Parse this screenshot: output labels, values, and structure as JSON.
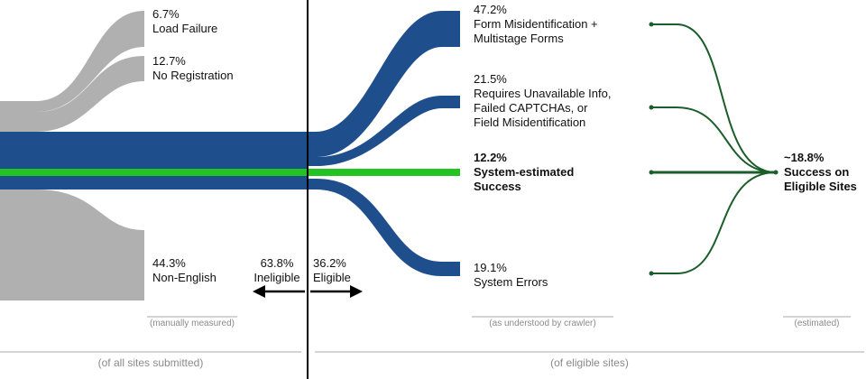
{
  "colors": {
    "ineligible": "#b0b0b0",
    "eligible_flow": "#1f4e8c",
    "success_flow": "#22c322",
    "estimate_flow": "#1b5e2a",
    "divider": "#000000",
    "rule": "#a8a8a8",
    "note_text": "#8a8a8a"
  },
  "ineligible_breakdown": [
    {
      "pct": "6.7%",
      "label": "Load Failure"
    },
    {
      "pct": "12.7%",
      "label": "No Registration"
    },
    {
      "pct": "44.3%",
      "label": "Non-English"
    }
  ],
  "split": {
    "ineligible_pct": "63.8%",
    "ineligible_label": "Ineligible",
    "eligible_pct": "36.2%",
    "eligible_label": "Eligible"
  },
  "eligible_breakdown": [
    {
      "pct": "47.2%",
      "lines": [
        "Form Misidentification +",
        "Multistage Forms"
      ]
    },
    {
      "pct": "21.5%",
      "lines": [
        "Requires Unavailable Info,",
        "Failed CAPTCHAs, or",
        "Field Misidentification"
      ]
    },
    {
      "pct": "12.2%",
      "lines": [
        "System-estimated",
        "Success"
      ]
    },
    {
      "pct": "19.1%",
      "lines": [
        "System Errors"
      ]
    }
  ],
  "estimate": {
    "pct": "~18.8%",
    "lines": [
      "Success on",
      "Eligible Sites"
    ]
  },
  "notes": {
    "manual": "(manually measured)",
    "crawler": "(as understood by crawler)",
    "estimated": "(estimated)"
  },
  "footers": {
    "all_sites": "(of all sites submitted)",
    "eligible_sites": "(of eligible sites)"
  }
}
